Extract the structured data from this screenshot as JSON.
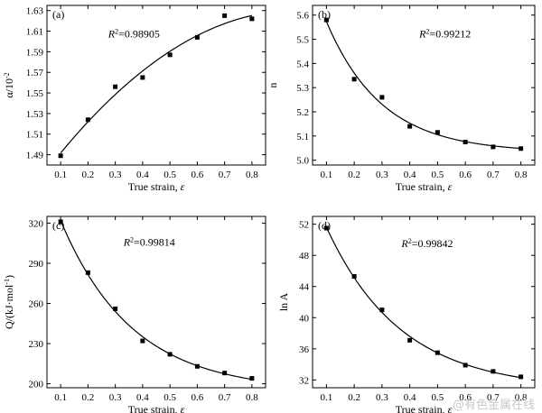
{
  "chart_data": [
    {
      "type": "scatter",
      "panel_label": "(a)",
      "xlabel": "True strain, ε",
      "ylabel": "α/10⁻²",
      "xlim": [
        0.05,
        0.85
      ],
      "ylim": [
        1.48,
        1.635
      ],
      "xticks": [
        "0.1",
        "0.2",
        "0.3",
        "0.4",
        "0.5",
        "0.6",
        "0.7",
        "0.8"
      ],
      "yticks": [
        "1.49",
        "1.51",
        "1.53",
        "1.55",
        "1.57",
        "1.59",
        "1.61",
        "1.63"
      ],
      "x": [
        0.1,
        0.2,
        0.3,
        0.4,
        0.5,
        0.6,
        0.7,
        0.8
      ],
      "y": [
        1.489,
        1.524,
        1.556,
        1.565,
        1.587,
        1.604,
        1.625,
        1.622
      ],
      "fit": "quadratic",
      "r2_text": "R²=0.98905"
    },
    {
      "type": "scatter",
      "panel_label": "(b)",
      "xlabel": "True strain, ε",
      "ylabel": "n",
      "xlim": [
        0.05,
        0.85
      ],
      "ylim": [
        4.98,
        5.64
      ],
      "xticks": [
        "0.1",
        "0.2",
        "0.3",
        "0.4",
        "0.5",
        "0.6",
        "0.7",
        "0.8"
      ],
      "yticks": [
        "5.0",
        "5.1",
        "5.2",
        "5.3",
        "5.4",
        "5.5",
        "5.6"
      ],
      "x": [
        0.1,
        0.2,
        0.3,
        0.4,
        0.5,
        0.6,
        0.7,
        0.8
      ],
      "y": [
        5.58,
        5.335,
        5.26,
        5.14,
        5.115,
        5.075,
        5.055,
        5.048
      ],
      "fit": "exponential",
      "r2_text": "R²=0.99212"
    },
    {
      "type": "scatter",
      "panel_label": "(c)",
      "xlabel": "True strain, ε",
      "ylabel": "Q/(kJ·mol⁻¹)",
      "xlim": [
        0.05,
        0.85
      ],
      "ylim": [
        197,
        325
      ],
      "xticks": [
        "0.1",
        "0.2",
        "0.3",
        "0.4",
        "0.5",
        "0.6",
        "0.7",
        "0.8"
      ],
      "yticks": [
        "200",
        "230",
        "260",
        "290",
        "320"
      ],
      "x": [
        0.1,
        0.2,
        0.3,
        0.4,
        0.5,
        0.6,
        0.7,
        0.8
      ],
      "y": [
        321,
        283,
        256,
        232,
        222,
        213,
        208,
        204
      ],
      "fit": "exponential",
      "r2_text": "R²=0.99814"
    },
    {
      "type": "scatter",
      "panel_label": "(d)",
      "xlabel": "True strain, ε",
      "ylabel": "ln A",
      "xlim": [
        0.05,
        0.85
      ],
      "ylim": [
        31,
        53
      ],
      "xticks": [
        "0.1",
        "0.2",
        "0.3",
        "0.4",
        "0.5",
        "0.6",
        "0.7",
        "0.8"
      ],
      "yticks": [
        "32",
        "36",
        "40",
        "44",
        "48",
        "52"
      ],
      "x": [
        0.1,
        0.2,
        0.3,
        0.4,
        0.5,
        0.6,
        0.7,
        0.8
      ],
      "y": [
        51.5,
        45.3,
        41.0,
        37.1,
        35.5,
        33.9,
        33.1,
        32.4
      ],
      "fit": "exponential",
      "r2_text": "R²=0.99842"
    }
  ],
  "watermark": "@有色金属在线"
}
